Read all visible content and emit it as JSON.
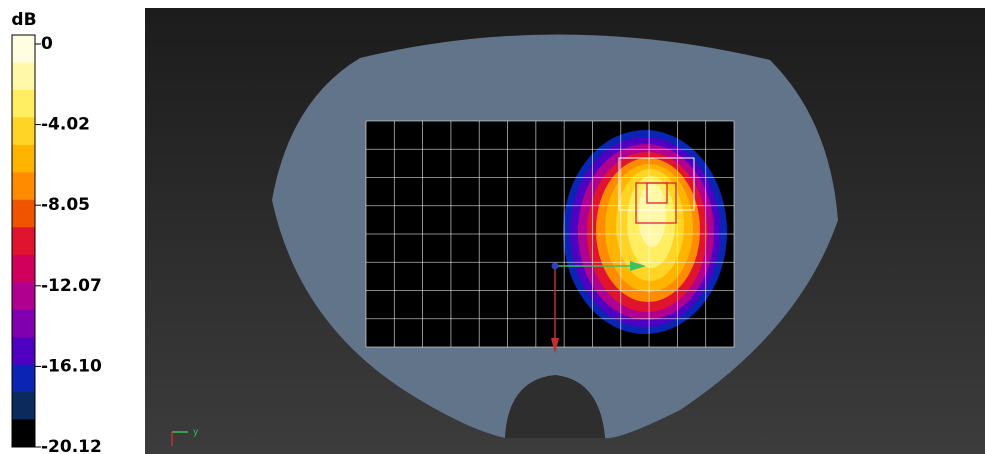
{
  "colorbar": {
    "unit": "dB",
    "ticks": [
      "0",
      "-4.02",
      "-8.05",
      "-12.07",
      "-16.10",
      "-20.12"
    ],
    "colors": [
      "#fffde2",
      "#fff8a8",
      "#ffee62",
      "#ffd424",
      "#ffb400",
      "#ff8c00",
      "#f05400",
      "#e0142e",
      "#d0005c",
      "#b00090",
      "#8000b0",
      "#5000c0",
      "#0a24b4",
      "#0c2a5c",
      "#000000"
    ]
  },
  "axes": {
    "label": "y"
  }
}
